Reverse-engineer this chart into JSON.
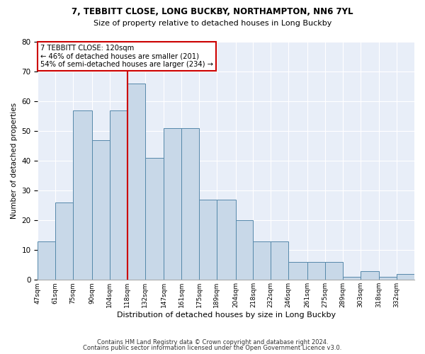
{
  "title1": "7, TEBBITT CLOSE, LONG BUCKBY, NORTHAMPTON, NN6 7YL",
  "title2": "Size of property relative to detached houses in Long Buckby",
  "xlabel": "Distribution of detached houses by size in Long Buckby",
  "ylabel": "Number of detached properties",
  "categories": [
    "47sqm",
    "61sqm",
    "75sqm",
    "90sqm",
    "104sqm",
    "118sqm",
    "132sqm",
    "147sqm",
    "161sqm",
    "175sqm",
    "189sqm",
    "204sqm",
    "218sqm",
    "232sqm",
    "246sqm",
    "261sqm",
    "275sqm",
    "289sqm",
    "303sqm",
    "318sqm",
    "332sqm"
  ],
  "bins": [
    47,
    61,
    75,
    90,
    104,
    118,
    132,
    147,
    161,
    175,
    189,
    204,
    218,
    232,
    246,
    261,
    275,
    289,
    303,
    318,
    332,
    346
  ],
  "heights": [
    13,
    26,
    57,
    47,
    57,
    66,
    41,
    51,
    51,
    27,
    27,
    20,
    13,
    13,
    6,
    6,
    6,
    1,
    3,
    1,
    2
  ],
  "property_line_x": 118,
  "bar_color": "#c8d8e8",
  "bar_edge_color": "#5588aa",
  "line_color": "#cc0000",
  "background_color": "#e8eef8",
  "annotation_box_color": "#cc0000",
  "annotation_text": "7 TEBBITT CLOSE: 120sqm\n← 46% of detached houses are smaller (201)\n54% of semi-detached houses are larger (234) →",
  "footer1": "Contains HM Land Registry data © Crown copyright and database right 2024.",
  "footer2": "Contains public sector information licensed under the Open Government Licence v3.0.",
  "ylim": [
    0,
    80
  ],
  "yticks": [
    0,
    10,
    20,
    30,
    40,
    50,
    60,
    70,
    80
  ]
}
